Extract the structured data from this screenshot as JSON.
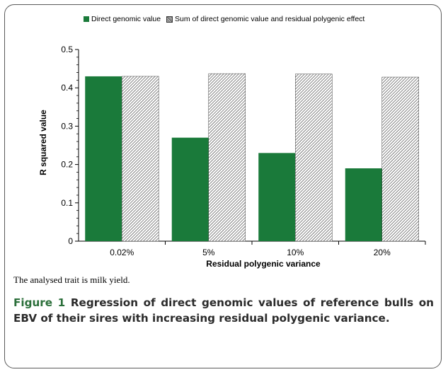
{
  "legend": {
    "series_1": "Direct genomic value",
    "series_2": "Sum of direct genomic value and residual polygenic effect"
  },
  "note": "The analysed trait is milk yield.",
  "figure": {
    "label": "Figure 1",
    "text": " Regression of direct genomic values of reference bulls on EBV of their sires with increasing residual polygenic variance",
    "end": "."
  },
  "colors": {
    "direct": "#1a7a3a",
    "hatch": "#333333"
  },
  "chart_data": {
    "type": "bar",
    "categories": [
      "0.02%",
      "5%",
      "10%",
      "20%"
    ],
    "series": [
      {
        "name": "Direct genomic value",
        "values": [
          0.43,
          0.27,
          0.23,
          0.19
        ],
        "style": "solid-green"
      },
      {
        "name": "Sum of direct genomic value and residual polygenic effect",
        "values": [
          0.43,
          0.437,
          0.436,
          0.428
        ],
        "style": "diagonal-hatch"
      }
    ],
    "xlabel": "Residual polygenic variance",
    "ylabel": "R squared value",
    "ylim": [
      0,
      0.5
    ],
    "yticks": [
      "0",
      "0.1",
      "0.2",
      "0.3",
      "0.4",
      "0.5"
    ],
    "grid": false,
    "legend_position": "top"
  }
}
